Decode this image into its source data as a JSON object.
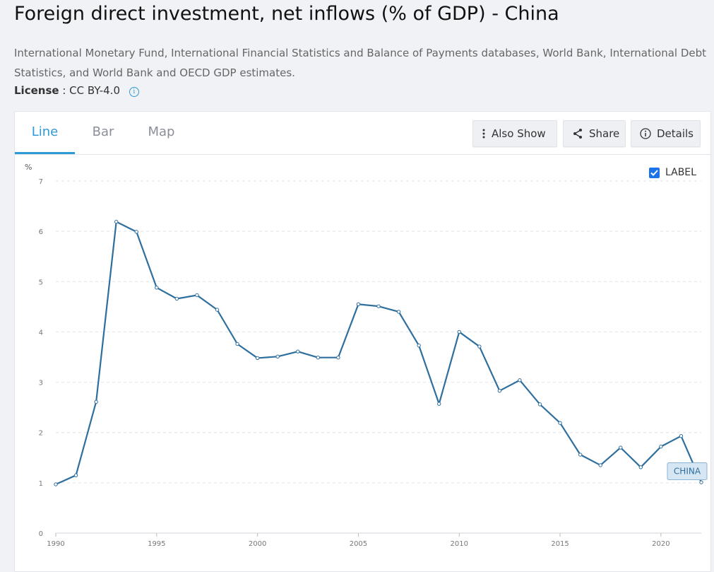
{
  "header": {
    "title": "Foreign direct investment, net inflows (% of GDP) - China",
    "source": "International Monetary Fund, International Financial Statistics and Balance of Payments databases, World Bank, International Debt Statistics, and World Bank and OECD GDP estimates.",
    "license_label": "License",
    "license_value": ": CC BY-4.0"
  },
  "tabs": [
    {
      "label": "Line",
      "active": true
    },
    {
      "label": "Bar",
      "active": false
    },
    {
      "label": "Map",
      "active": false
    }
  ],
  "toolbar": {
    "also_show": "Also Show",
    "share": "Share",
    "details": "Details"
  },
  "label_toggle": {
    "text": "LABEL",
    "checked": true
  },
  "colors": {
    "accent": "#2f9bd6",
    "line": "#2e6f9e",
    "checkbox": "#1a73e8"
  },
  "chart_data": {
    "type": "line",
    "ylabel": "%",
    "xlabel": "",
    "ylim": [
      0,
      7
    ],
    "xlim": [
      1990,
      2022
    ],
    "y_ticks": [
      0,
      1,
      2,
      3,
      4,
      5,
      6,
      7
    ],
    "x_ticks": [
      1990,
      1995,
      2000,
      2005,
      2010,
      2015,
      2020
    ],
    "grid": true,
    "series": [
      {
        "name": "CHINA",
        "x": [
          1990,
          1991,
          1992,
          1993,
          1994,
          1995,
          1996,
          1997,
          1998,
          1999,
          2000,
          2001,
          2002,
          2003,
          2004,
          2005,
          2006,
          2007,
          2008,
          2009,
          2010,
          2011,
          2012,
          2013,
          2014,
          2015,
          2016,
          2017,
          2018,
          2019,
          2020,
          2021,
          2022
        ],
        "values": [
          0.97,
          1.15,
          2.61,
          6.19,
          5.99,
          4.88,
          4.66,
          4.73,
          4.44,
          3.76,
          3.48,
          3.51,
          3.61,
          3.49,
          3.49,
          4.55,
          4.51,
          4.4,
          3.73,
          2.57,
          4.0,
          3.71,
          2.83,
          3.04,
          2.56,
          2.19,
          1.56,
          1.35,
          1.7,
          1.31,
          1.72,
          1.93,
          1.01
        ]
      }
    ]
  }
}
